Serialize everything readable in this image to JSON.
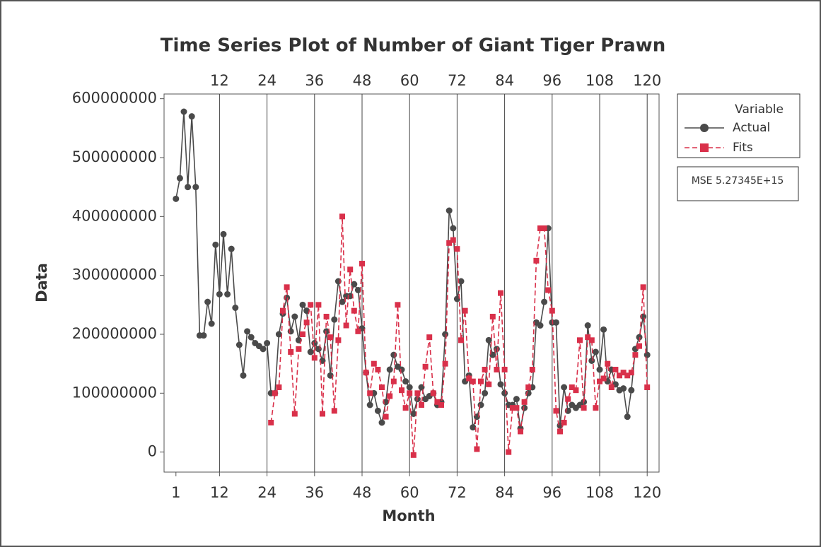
{
  "chart_data": {
    "type": "line",
    "title": "Time Series Plot of Number of Giant Tiger Prawn",
    "x_label": "Month",
    "y_label": "Data",
    "legend_title": "Variable",
    "annotation": "MSE 5.27345E+15",
    "x": [
      1,
      2,
      3,
      4,
      5,
      6,
      7,
      8,
      9,
      10,
      11,
      12,
      13,
      14,
      15,
      16,
      17,
      18,
      19,
      20,
      21,
      22,
      23,
      24,
      25,
      26,
      27,
      28,
      29,
      30,
      31,
      32,
      33,
      34,
      35,
      36,
      37,
      38,
      39,
      40,
      41,
      42,
      43,
      44,
      45,
      46,
      47,
      48,
      49,
      50,
      51,
      52,
      53,
      54,
      55,
      56,
      57,
      58,
      59,
      60,
      61,
      62,
      63,
      64,
      65,
      66,
      67,
      68,
      69,
      70,
      71,
      72,
      73,
      74,
      75,
      76,
      77,
      78,
      79,
      80,
      81,
      82,
      83,
      84,
      85,
      86,
      87,
      88,
      89,
      90,
      91,
      92,
      93,
      94,
      95,
      96,
      97,
      98,
      99,
      100,
      101,
      102,
      103,
      104,
      105,
      106,
      107,
      108,
      109,
      110,
      111,
      112,
      113,
      114,
      115,
      116,
      117,
      118,
      119,
      120
    ],
    "series": [
      {
        "name": "Actual",
        "color": "#4a4a4a",
        "marker": "circle",
        "values": [
          430000000,
          465000000,
          578000000,
          450000000,
          570000000,
          450000000,
          198000000,
          198000000,
          255000000,
          218000000,
          352000000,
          268000000,
          370000000,
          268000000,
          345000000,
          245000000,
          182000000,
          130000000,
          205000000,
          195000000,
          185000000,
          180000000,
          175000000,
          185000000,
          100000000,
          100000000,
          200000000,
          235000000,
          262000000,
          205000000,
          230000000,
          190000000,
          250000000,
          240000000,
          170000000,
          185000000,
          175000000,
          155000000,
          205000000,
          130000000,
          225000000,
          290000000,
          255000000,
          265000000,
          265000000,
          285000000,
          275000000,
          210000000,
          135000000,
          80000000,
          100000000,
          70000000,
          50000000,
          85000000,
          140000000,
          165000000,
          145000000,
          140000000,
          120000000,
          110000000,
          65000000,
          90000000,
          110000000,
          90000000,
          95000000,
          100000000,
          80000000,
          85000000,
          200000000,
          410000000,
          380000000,
          260000000,
          290000000,
          120000000,
          130000000,
          42000000,
          60000000,
          80000000,
          100000000,
          190000000,
          165000000,
          175000000,
          115000000,
          100000000,
          80000000,
          80000000,
          90000000,
          40000000,
          75000000,
          100000000,
          110000000,
          220000000,
          215000000,
          255000000,
          380000000,
          220000000,
          220000000,
          45000000,
          110000000,
          70000000,
          80000000,
          75000000,
          80000000,
          85000000,
          215000000,
          155000000,
          170000000,
          140000000,
          208000000,
          120000000,
          140000000,
          115000000,
          105000000,
          108000000,
          60000000,
          105000000,
          175000000,
          195000000,
          230000000,
          165000000
        ]
      },
      {
        "name": "Fits",
        "color": "#d9304a",
        "marker": "square",
        "dashed": true,
        "values": [
          null,
          null,
          null,
          null,
          null,
          null,
          null,
          null,
          null,
          null,
          null,
          null,
          null,
          null,
          null,
          null,
          null,
          null,
          null,
          null,
          null,
          null,
          null,
          null,
          50000000,
          100000000,
          110000000,
          240000000,
          280000000,
          170000000,
          65000000,
          175000000,
          200000000,
          220000000,
          250000000,
          160000000,
          250000000,
          65000000,
          230000000,
          195000000,
          70000000,
          190000000,
          400000000,
          215000000,
          310000000,
          240000000,
          205000000,
          320000000,
          135000000,
          100000000,
          150000000,
          140000000,
          110000000,
          60000000,
          95000000,
          120000000,
          250000000,
          105000000,
          75000000,
          100000000,
          -5000000,
          100000000,
          80000000,
          145000000,
          195000000,
          100000000,
          85000000,
          80000000,
          150000000,
          355000000,
          360000000,
          345000000,
          190000000,
          240000000,
          125000000,
          120000000,
          5000000,
          120000000,
          140000000,
          115000000,
          230000000,
          140000000,
          270000000,
          140000000,
          0,
          75000000,
          75000000,
          35000000,
          85000000,
          110000000,
          140000000,
          325000000,
          380000000,
          380000000,
          275000000,
          240000000,
          70000000,
          35000000,
          50000000,
          90000000,
          110000000,
          105000000,
          190000000,
          75000000,
          195000000,
          190000000,
          75000000,
          120000000,
          125000000,
          150000000,
          110000000,
          140000000,
          130000000,
          135000000,
          130000000,
          135000000,
          165000000,
          180000000,
          280000000,
          110000000
        ]
      }
    ],
    "xlim": [
      -2,
      123
    ],
    "ylim": [
      -34000000,
      608000000
    ],
    "xticks": [
      1,
      12,
      24,
      36,
      48,
      60,
      72,
      84,
      96,
      108,
      120
    ],
    "x2ticks": [
      12,
      24,
      36,
      48,
      60,
      72,
      84,
      96,
      108,
      120
    ],
    "yticks": [
      0,
      100000000,
      200000000,
      300000000,
      400000000,
      500000000,
      600000000
    ]
  }
}
